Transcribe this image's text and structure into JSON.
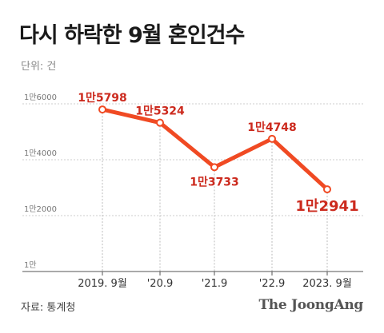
{
  "header": {
    "title": "다시 하락한 9월 혼인건수",
    "unit": "단위: 건"
  },
  "footer": {
    "source": "자료: 통계청",
    "brand": "The JoongAng"
  },
  "chart_data": {
    "type": "line",
    "title": "다시 하락한 9월 혼인건수",
    "ylabel": "단위: 건",
    "categories": [
      "2019. 9월",
      "'20.9",
      "'21.9",
      "'22.9",
      "2023. 9월"
    ],
    "series": [
      {
        "values": [
          15798,
          15324,
          13733,
          14748,
          12941
        ]
      }
    ],
    "data_labels": [
      "1만5798",
      "1만5324",
      "1만3733",
      "1만4748",
      "1만2941"
    ],
    "y_ticks": [
      {
        "value": 10000,
        "label": "1만"
      },
      {
        "value": 12000,
        "label": "1만2000"
      },
      {
        "value": 14000,
        "label": "1만4000"
      },
      {
        "value": 16000,
        "label": "1만6000"
      }
    ],
    "ylim": [
      10000,
      16000
    ],
    "grid": true,
    "legend": "none",
    "colors": {
      "line": "#f04a23",
      "label": "#cc2a1e",
      "grid": "#cccccc",
      "axis": "#555555"
    }
  }
}
